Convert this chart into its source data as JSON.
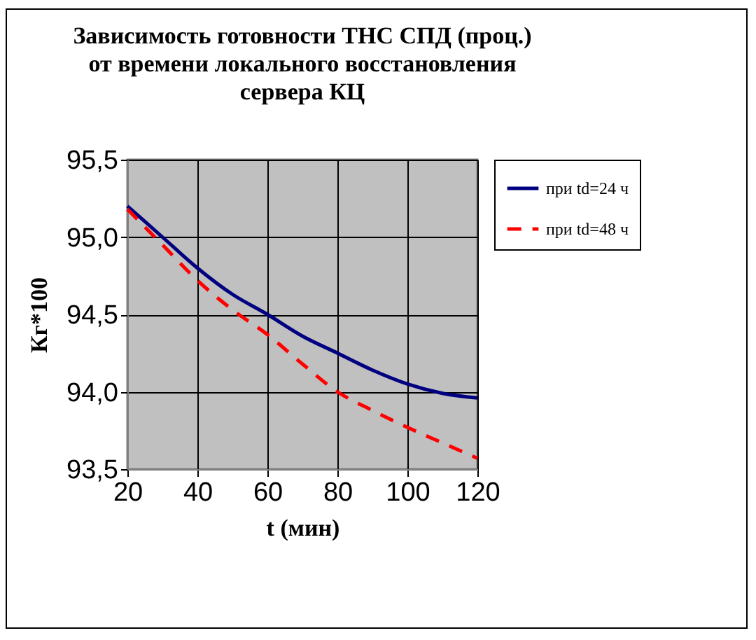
{
  "chart_data": {
    "type": "line",
    "title": "Зависимость готовности ТНС СПД (проц.)\nот времени локального восстановления\nсервера КЦ",
    "xlabel": "t (мин)",
    "ylabel": "Кг*100",
    "x": [
      20,
      30,
      40,
      50,
      60,
      70,
      80,
      90,
      100,
      110,
      120
    ],
    "series": [
      {
        "name": "при td=24 ч",
        "color": "#000080",
        "line_style": "solid",
        "values": [
          95.2,
          95.0,
          94.8,
          94.63,
          94.5,
          94.36,
          94.25,
          94.14,
          94.05,
          93.99,
          93.96
        ]
      },
      {
        "name": "при td=48 ч",
        "color": "#ff0000",
        "line_style": "dashed",
        "values": [
          95.18,
          94.95,
          94.72,
          94.53,
          94.37,
          94.18,
          94.0,
          93.88,
          93.77,
          93.67,
          93.57
        ]
      }
    ],
    "xlim": [
      20,
      120
    ],
    "xticks": [
      20,
      40,
      60,
      80,
      100,
      120
    ],
    "ylim": [
      93.5,
      95.5
    ],
    "yticks": [
      {
        "value": 93.5,
        "label": "93,5"
      },
      {
        "value": 94,
        "label": "94,0"
      },
      {
        "value": 94.5,
        "label": "94,5"
      },
      {
        "value": 95,
        "label": "95,0"
      },
      {
        "value": 95.5,
        "label": "95,5"
      }
    ],
    "grid": true,
    "legend": "right",
    "marker": "none"
  }
}
